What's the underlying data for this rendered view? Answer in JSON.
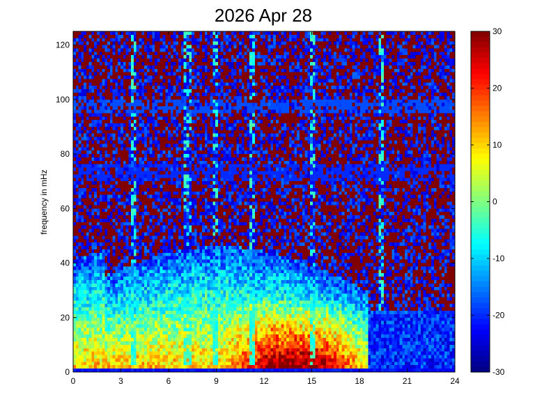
{
  "chart_data": {
    "type": "heatmap",
    "title": "2026 Apr 28",
    "xlabel": "",
    "ylabel": "frequency in mHz",
    "xlim": [
      0,
      24
    ],
    "ylim": [
      0,
      125
    ],
    "xticks": [
      "0",
      "3",
      "6",
      "9",
      "12",
      "15",
      "18",
      "21",
      "24"
    ],
    "yticks": [
      "0",
      "20",
      "40",
      "60",
      "80",
      "100",
      "120"
    ],
    "colorbar": {
      "range": [
        -30,
        30
      ],
      "ticks": [
        "30",
        "20",
        "10",
        "0",
        "-10",
        "-20",
        "-30"
      ],
      "colormap": "jet"
    },
    "x_bins": 145,
    "y_bins": 100,
    "dominant_features": {
      "background_level": 30,
      "low_frequency_activity_hours": [
        0,
        18.5
      ],
      "strongest_region": {
        "hours": [
          10,
          18
        ],
        "frequency_mHz": [
          0,
          25
        ],
        "level": 25
      },
      "near_zero_baseline_level": -25,
      "quiet_after_hour": 18.5
    },
    "colors": {
      "max": "#800000",
      "high": "#ff0000",
      "mid": "#ffff00",
      "zero": "#80ff80",
      "low": "#00ffff",
      "lower": "#0000ff",
      "min": "#000080"
    }
  }
}
